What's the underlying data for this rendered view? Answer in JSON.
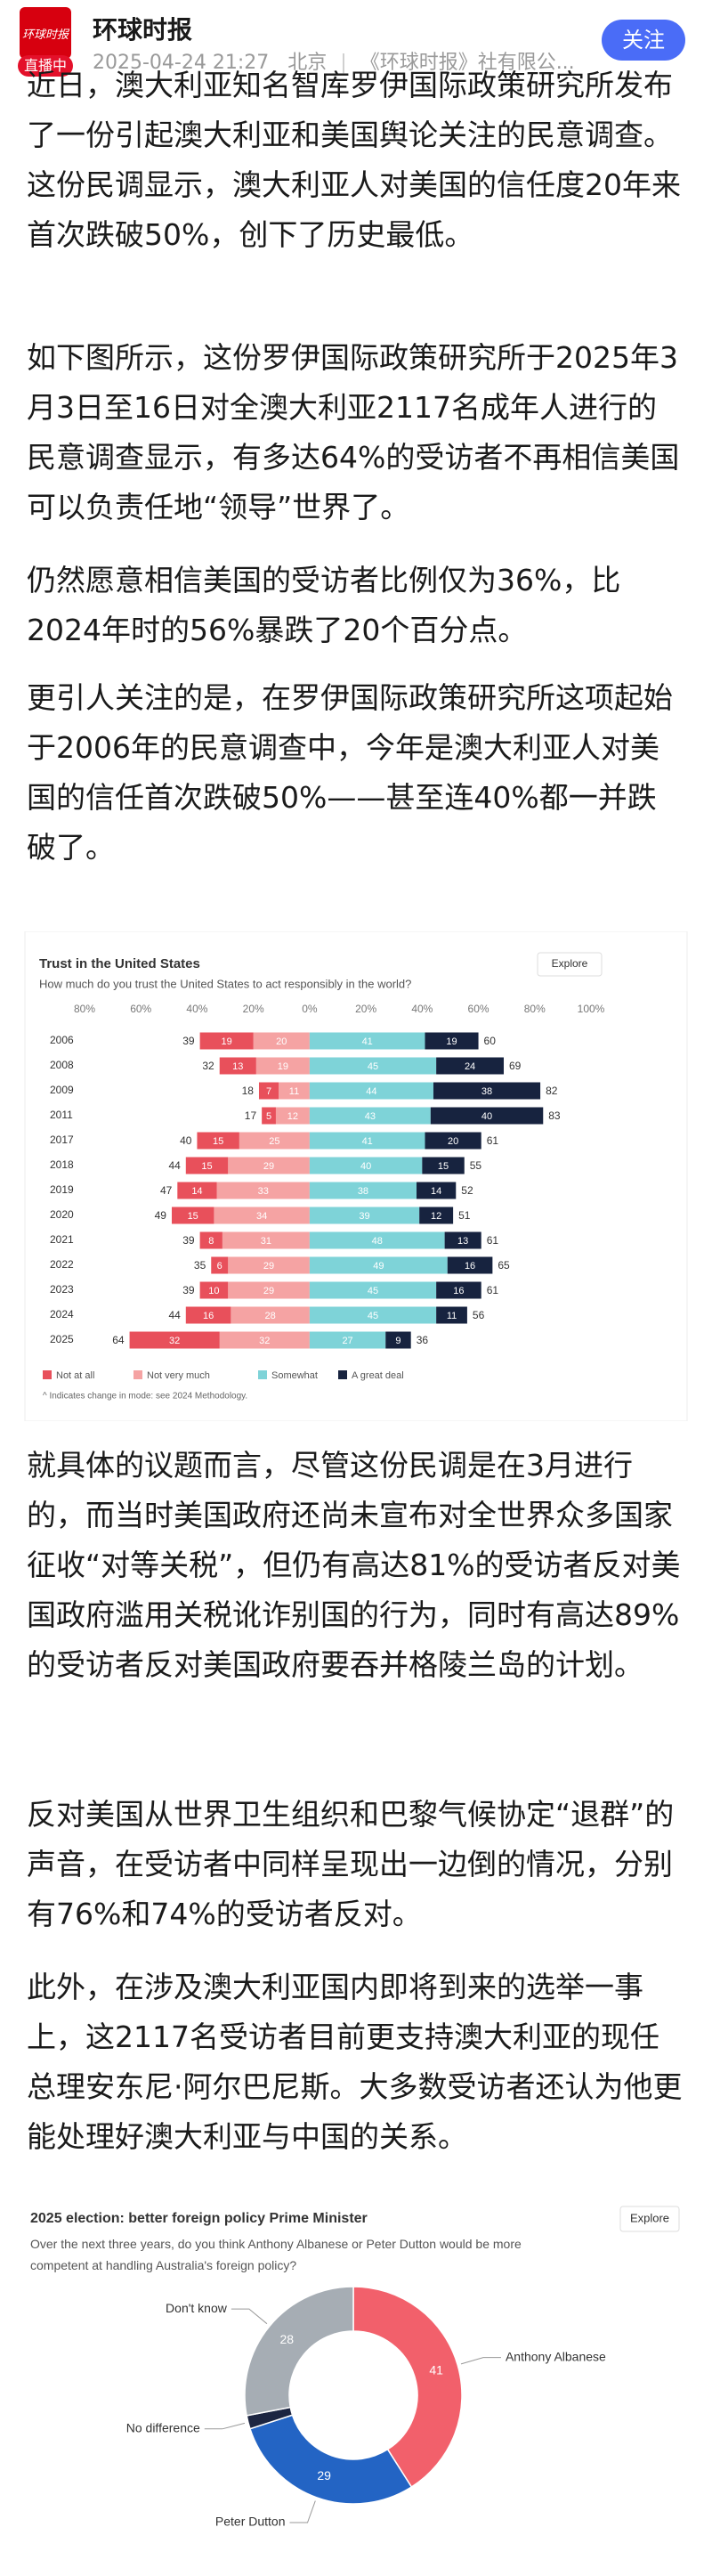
{
  "header": {
    "logo_text": "环球时报",
    "live_badge": "直播中",
    "name": "环球时报",
    "time": "2025-04-24 21:27",
    "location": "北京",
    "publisher": "《环球时报》社有限公...",
    "follow_button": "关注"
  },
  "article": {
    "paragraphs": [
      "近日，澳大利亚知名智库罗伊国际政策研究所发布了一份引起澳大利亚和美国舆论关注的民意调查。这份民调显示，澳大利亚人对美国的信任度20年来首次跌破50%，创下了历史最低。",
      "如下图所示，这份罗伊国际政策研究所于2025年3月3日至16日对全澳大利亚2117名成年人进行的民意调查显示，有多达64%的受访者不再相信美国可以负责任地“领导”世界了。",
      "仍然愿意相信美国的受访者比例仅为36%，比2024年时的56%暴跌了20个百分点。",
      "更引人关注的是，在罗伊国际政策研究所这项起始于2006年的民意调查中，今年是澳大利亚人对美国的信任首次跌破50%——甚至连40%都一并跌破了。",
      "就具体的议题而言，尽管这份民调是在3月进行的，而当时美国政府还尚未宣布对全世界众多国家征收“对等关税”，但仍有高达81%的受访者反对美国政府滥用关税讹诈别国的行为，同时有高达89%的受访者反对美国政府要吞并格陵兰岛的计划。",
      "反对美国从世界卫生组织和巴黎气候协定“退群”的声音，在受访者中同样呈现出一边倒的情况，分别有76%和74%的受访者反对。",
      "此外，在涉及澳大利亚国内即将到来的选举一事上，这2117名受访者目前更支持澳大利亚的现任总理安东尼·阿尔巴尼斯。大多数受访者还认为他更能处理好澳大利亚与中国的关系。"
    ]
  },
  "chart_data": [
    {
      "type": "diverging-bar",
      "title": "Trust in the United States",
      "subtitle": "How much do you trust the United States to act responsibly in the world?",
      "explore": "Explore",
      "categories": [
        "2006",
        "2008",
        "2009",
        "2011",
        "2017",
        "2018",
        "2019",
        "2020",
        "2021",
        "2022",
        "2023",
        "2024",
        "2025"
      ],
      "series": [
        {
          "name": "Not at all",
          "color": "#e8505b",
          "side": "negative",
          "values": [
            19,
            13,
            7,
            5,
            15,
            15,
            14,
            15,
            8,
            6,
            10,
            16,
            32
          ]
        },
        {
          "name": "Not very much",
          "color": "#f5a3a3",
          "side": "negative",
          "values": [
            20,
            19,
            11,
            12,
            25,
            29,
            33,
            34,
            31,
            29,
            29,
            28,
            32
          ]
        },
        {
          "name": "Somewhat",
          "color": "#7ed3d8",
          "side": "positive",
          "values": [
            41,
            45,
            44,
            43,
            41,
            40,
            38,
            39,
            48,
            49,
            45,
            45,
            27
          ]
        },
        {
          "name": "A great deal",
          "color": "#17233f",
          "side": "positive",
          "values": [
            19,
            24,
            38,
            40,
            20,
            15,
            14,
            12,
            13,
            16,
            16,
            11,
            9
          ]
        }
      ],
      "negative_totals": [
        39,
        32,
        18,
        17,
        40,
        44,
        47,
        49,
        39,
        35,
        39,
        44,
        64
      ],
      "positive_totals": [
        60,
        69,
        82,
        83,
        61,
        55,
        52,
        51,
        61,
        65,
        61,
        56,
        36
      ],
      "xlim": [
        -80,
        100
      ],
      "xticks": [
        {
          "value": -80,
          "label": "80%"
        },
        {
          "value": -60,
          "label": "60%"
        },
        {
          "value": -40,
          "label": "40%"
        },
        {
          "value": -20,
          "label": "20%"
        },
        {
          "value": 0,
          "label": "0%"
        },
        {
          "value": 20,
          "label": "20%"
        },
        {
          "value": 40,
          "label": "40%"
        },
        {
          "value": 60,
          "label": "60%"
        },
        {
          "value": 80,
          "label": "80%"
        },
        {
          "value": 100,
          "label": "100%"
        }
      ],
      "footnote": "^ Indicates change in mode: see 2024 Methodology."
    },
    {
      "type": "donut",
      "title": "2025 election: better foreign policy Prime Minister",
      "subtitle": "Over the next three years, do you think Anthony Albanese or Peter Dutton would be more competent at handling Australia's foreign policy?",
      "explore": "Explore",
      "categories": [
        "Anthony Albanese",
        "Peter Dutton",
        "No difference",
        "Don't know"
      ],
      "values": [
        41,
        29,
        2,
        28
      ],
      "colors": [
        "#f2606b",
        "#2364c4",
        "#1c2541",
        "#a6adb4"
      ]
    }
  ]
}
